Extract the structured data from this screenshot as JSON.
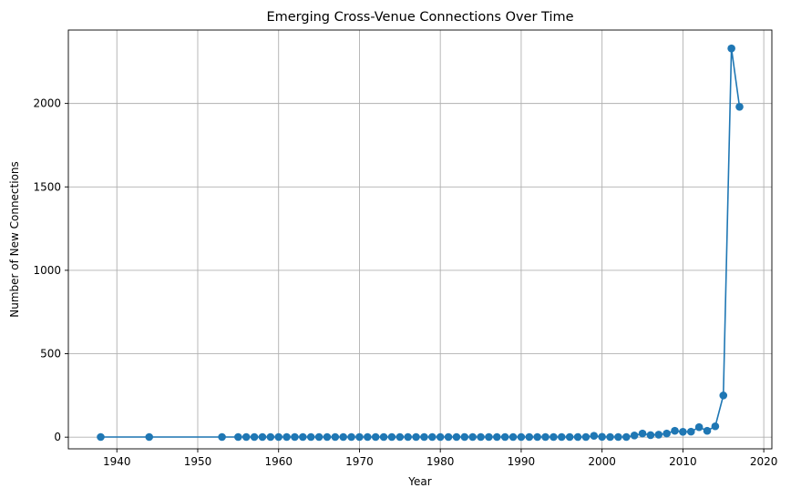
{
  "chart_data": {
    "type": "line",
    "title": "Emerging Cross-Venue Connections Over Time",
    "xlabel": "Year",
    "ylabel": "Number of New Connections",
    "xlim": [
      1934,
      2021
    ],
    "ylim": [
      -70,
      2440
    ],
    "xticks": [
      1940,
      1950,
      1960,
      1970,
      1980,
      1990,
      2000,
      2010,
      2020
    ],
    "yticks": [
      0,
      500,
      1000,
      1500,
      2000
    ],
    "grid": true,
    "marker": "circle",
    "color": "#1f77b4",
    "series": [
      {
        "x": [
          1938,
          1944,
          1953,
          1955,
          1956,
          1957,
          1958,
          1959,
          1960,
          1961,
          1962,
          1963,
          1964,
          1965,
          1966,
          1967,
          1968,
          1969,
          1970,
          1971,
          1972,
          1973,
          1974,
          1975,
          1976,
          1977,
          1978,
          1979,
          1980,
          1981,
          1982,
          1983,
          1984,
          1985,
          1986,
          1987,
          1988,
          1989,
          1990,
          1991,
          1992,
          1993,
          1994,
          1995,
          1996,
          1997,
          1998,
          1999,
          2000,
          2001,
          2002,
          2003,
          2004,
          2005,
          2006,
          2007,
          2008,
          2009,
          2010,
          2011,
          2012,
          2013,
          2014,
          2015,
          2016,
          2017
        ],
        "values": [
          1,
          1,
          1,
          1,
          1,
          1,
          1,
          1,
          1,
          1,
          1,
          1,
          1,
          1,
          1,
          1,
          1,
          1,
          1,
          1,
          1,
          1,
          1,
          1,
          1,
          1,
          1,
          1,
          1,
          1,
          1,
          1,
          1,
          1,
          1,
          1,
          1,
          1,
          1,
          1,
          1,
          1,
          1,
          1,
          1,
          1,
          1,
          8,
          2,
          1,
          1,
          1,
          10,
          22,
          12,
          15,
          22,
          38,
          32,
          33,
          60,
          38,
          65,
          250,
          2330,
          1980
        ]
      }
    ]
  }
}
